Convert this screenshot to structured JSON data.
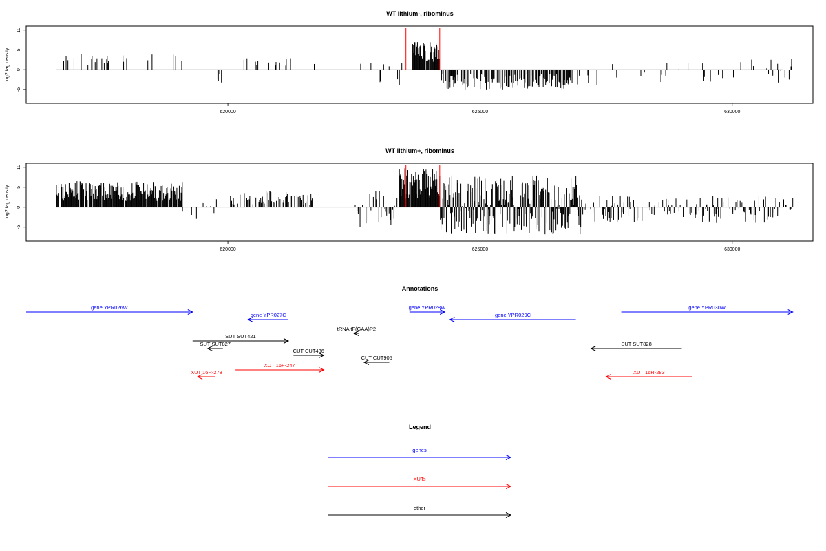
{
  "chart_data": [
    {
      "type": "bar",
      "title": "WT lithium-, ribominus",
      "ylabel": "log2 tag density",
      "xlim": [
        616000,
        631600
      ],
      "ylim": [
        -8.5,
        11
      ],
      "x_ticks": [
        620000,
        625000,
        630000
      ],
      "y_ticks": [
        -5,
        0,
        5,
        10
      ],
      "markers": [
        623530,
        624200
      ],
      "marker_color": "#ff0000",
      "regions": [
        {
          "start": 616600,
          "end": 619100,
          "min": 1,
          "max": 4,
          "density": 0.12,
          "sign": 1
        },
        {
          "start": 619800,
          "end": 619950,
          "min": -3.5,
          "max": -1,
          "density": 0.3,
          "sign": -1
        },
        {
          "start": 620150,
          "end": 621300,
          "min": 1,
          "max": 3.5,
          "density": 0.08,
          "sign": 1
        },
        {
          "start": 621700,
          "end": 622100,
          "min": -3,
          "max": 2,
          "density": 0.08,
          "sign": 0
        },
        {
          "start": 622500,
          "end": 623500,
          "min": -4.5,
          "max": 3,
          "density": 0.15,
          "sign": 0
        },
        {
          "start": 623650,
          "end": 624200,
          "min": 2,
          "max": 7,
          "density": 0.9,
          "sign": 1
        },
        {
          "start": 624200,
          "end": 626800,
          "min": -5,
          "max": -1,
          "density": 0.55,
          "sign": -1
        },
        {
          "start": 626800,
          "end": 627400,
          "min": -4,
          "max": -0.5,
          "density": 0.1,
          "sign": -1
        },
        {
          "start": 627600,
          "end": 631200,
          "min": -3.5,
          "max": 3,
          "density": 0.09,
          "sign": 0
        }
      ]
    },
    {
      "type": "bar",
      "title": "WT lithium+, ribominus",
      "ylabel": "log2 tag density",
      "xlim": [
        616000,
        631600
      ],
      "ylim": [
        -8.5,
        11
      ],
      "x_ticks": [
        620000,
        625000,
        630000
      ],
      "y_ticks": [
        -5,
        0,
        5,
        10
      ],
      "markers": [
        623530,
        624200
      ],
      "marker_color": "#ff0000",
      "regions": [
        {
          "start": 616600,
          "end": 619100,
          "min": 1.5,
          "max": 6.5,
          "density": 0.9,
          "sign": 1
        },
        {
          "start": 619100,
          "end": 619950,
          "min": -3,
          "max": 2,
          "density": 0.2,
          "sign": 0
        },
        {
          "start": 620050,
          "end": 621700,
          "min": 0.5,
          "max": 4,
          "density": 0.5,
          "sign": 1
        },
        {
          "start": 622500,
          "end": 623400,
          "min": -5,
          "max": 4,
          "density": 0.4,
          "sign": 0
        },
        {
          "start": 623400,
          "end": 624200,
          "min": 2,
          "max": 10,
          "density": 0.95,
          "sign": 1
        },
        {
          "start": 624200,
          "end": 627000,
          "min": -7,
          "max": 8,
          "density": 0.95,
          "sign": 0
        },
        {
          "start": 627000,
          "end": 631200,
          "min": -4,
          "max": 3,
          "density": 0.4,
          "sign": 0
        }
      ]
    }
  ],
  "annotations": {
    "title": "Annotations",
    "xlim": [
      616000,
      631600
    ],
    "colors": {
      "gene": "#0000ff",
      "xut": "#ff0000",
      "other": "#000000"
    },
    "features": [
      {
        "label": "gene YPR026W",
        "start": 616000,
        "end": 619300,
        "strand": "+",
        "row": 0,
        "kind": "gene"
      },
      {
        "label": "gene YPR027C",
        "start": 620400,
        "end": 621200,
        "strand": "-",
        "row": 1,
        "kind": "gene"
      },
      {
        "label": "gene YPR028W",
        "start": 623600,
        "end": 624300,
        "strand": "+",
        "row": 0,
        "kind": "gene"
      },
      {
        "label": "gene YPR029C",
        "start": 624400,
        "end": 626900,
        "strand": "-",
        "row": 1,
        "kind": "gene"
      },
      {
        "label": "gene YPR030W",
        "start": 627800,
        "end": 631200,
        "strand": "+",
        "row": 0,
        "kind": "gene"
      },
      {
        "label": "tRNA tF(GAA)P2",
        "start": 622500,
        "end": 622600,
        "strand": "-",
        "row": 3,
        "kind": "other"
      },
      {
        "label": "SUT SUT421",
        "start": 619300,
        "end": 621200,
        "strand": "+",
        "row": 4,
        "kind": "other"
      },
      {
        "label": "SUT SUT827",
        "start": 619600,
        "end": 619900,
        "strand": "-",
        "row": 5,
        "kind": "other"
      },
      {
        "label": "SUT SUT828",
        "start": 627200,
        "end": 629000,
        "strand": "-",
        "row": 5,
        "kind": "other"
      },
      {
        "label": "CUT CUT436",
        "start": 621300,
        "end": 621900,
        "strand": "+",
        "row": 6,
        "kind": "other"
      },
      {
        "label": "CUT CUT905",
        "start": 622700,
        "end": 623200,
        "strand": "-",
        "row": 7,
        "kind": "other"
      },
      {
        "label": "XUT 16F-247",
        "start": 620150,
        "end": 621900,
        "strand": "+",
        "row": 8,
        "kind": "xut"
      },
      {
        "label": "XUT 16R-278",
        "start": 619400,
        "end": 619750,
        "strand": "-",
        "row": 9,
        "kind": "xut"
      },
      {
        "label": "XUT 16R-283",
        "start": 627500,
        "end": 629200,
        "strand": "-",
        "row": 9,
        "kind": "xut"
      }
    ]
  },
  "legend": {
    "title": "Legend",
    "items": [
      {
        "label": "genes",
        "color": "#0000ff"
      },
      {
        "label": "XUTs",
        "color": "#ff0000"
      },
      {
        "label": "other",
        "color": "#000000"
      }
    ]
  }
}
